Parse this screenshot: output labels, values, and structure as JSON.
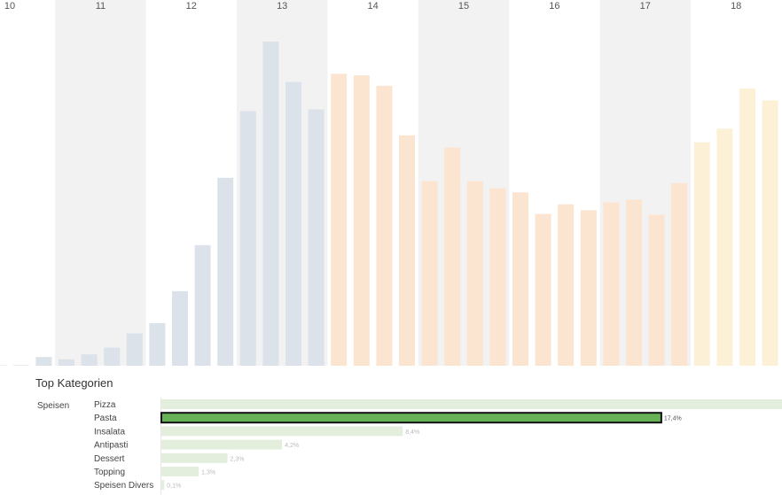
{
  "chart_data": [
    {
      "type": "bar",
      "xlabel": "",
      "ylabel": "",
      "x_ticks": [
        "10",
        "11",
        "12",
        "13",
        "14",
        "15",
        "16",
        "17",
        "18"
      ],
      "bins_per_hour": 4,
      "series": [
        {
          "values": [
            0,
            1,
            2,
            30,
            22,
            39,
            62,
            111,
            146,
            256,
            414,
            645,
            874,
            1113,
            974,
            880,
            1002,
            997,
            961,
            791,
            634,
            749,
            634,
            609,
            595,
            521,
            554,
            534,
            561,
            570,
            518,
            627,
            767,
            814,
            952,
            911
          ]
        }
      ],
      "colors": {
        "early": "#dbe2ea",
        "midday": "#fbe4d0",
        "evening": "#fcf1d6",
        "band": "#f2f2f2"
      },
      "ylim": [
        0,
        1140
      ],
      "grid": false
    },
    {
      "type": "bar",
      "title": "Top Kategorien",
      "group_label": "Speisen",
      "categories": [
        "Pizza",
        "Pasta",
        "Insalata",
        "Antipasti",
        "Dessert",
        "Topping",
        "Speisen Divers"
      ],
      "values": [
        21.6,
        17.4,
        8.4,
        4.2,
        2.3,
        1.3,
        0.1
      ],
      "labels": [
        "",
        "17,4%",
        "8,4%",
        "4,2%",
        "2,3%",
        "1,3%",
        "0,1%"
      ],
      "selected": "Pasta",
      "colors": {
        "bar": "#e3eedd",
        "selected": "#67b257",
        "outline": "#111111"
      },
      "xlim": [
        0,
        21.6
      ]
    }
  ]
}
